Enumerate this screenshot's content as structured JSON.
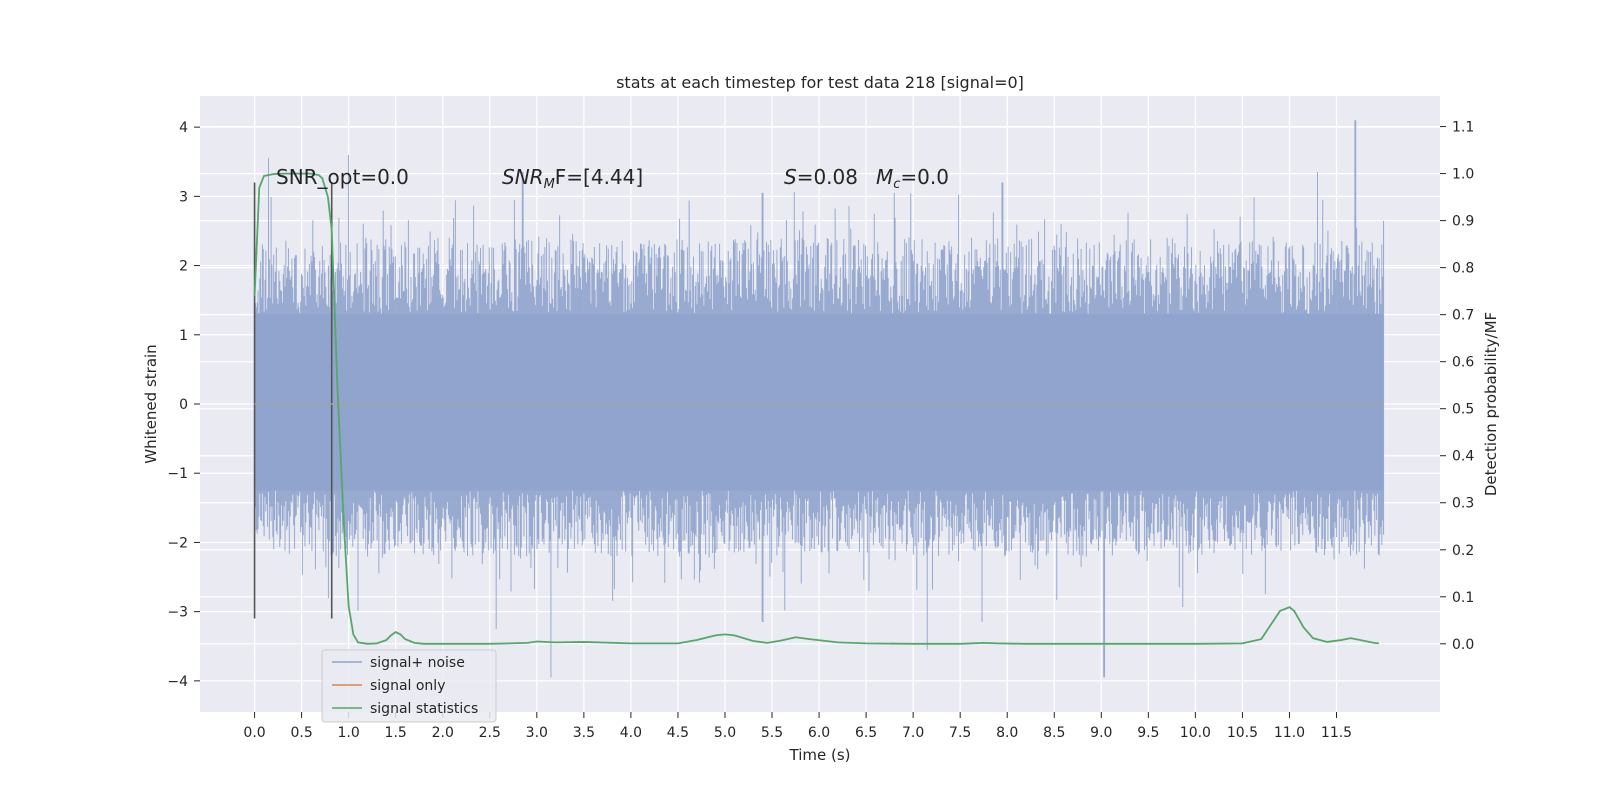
{
  "chart_data": {
    "type": "line",
    "title": "stats at each timestep for test data 218 [signal=0]",
    "xlabel": "Time (s)",
    "ylabel": "Whitened strain",
    "y2label": "Detection probability/MF",
    "xlim": [
      -0.58,
      12.6
    ],
    "ylim": [
      -4.45,
      4.45
    ],
    "y2lim": [
      -0.145,
      1.165
    ],
    "grid": true,
    "legend_position": "lower-left",
    "x_ticks": [
      "0.0",
      "0.5",
      "1.0",
      "1.5",
      "2.0",
      "2.5",
      "3.0",
      "3.5",
      "4.0",
      "4.5",
      "5.0",
      "5.5",
      "6.0",
      "6.5",
      "7.0",
      "7.5",
      "8.0",
      "8.5",
      "9.0",
      "9.5",
      "10.0",
      "10.5",
      "11.0",
      "11.5"
    ],
    "y_ticks": [
      "4",
      "3",
      "2",
      "1",
      "0",
      "−1",
      "−2",
      "−3",
      "−4"
    ],
    "y2_ticks": [
      "1.1",
      "1.0",
      "0.9",
      "0.8",
      "0.7",
      "0.6",
      "0.5",
      "0.4",
      "0.3",
      "0.2",
      "0.1",
      "0.0"
    ],
    "annotations": {
      "snr_opt": "SNR_opt=0.0",
      "snr_mf_base": "SNR",
      "snr_mf_sub": "M",
      "snr_mf_rest": "F=[4.44]",
      "s_label": "S",
      "s_value": "=0.08",
      "mc_label": "M",
      "mc_sub": "c",
      "mc_value": "=0.0"
    },
    "markers": {
      "x": [
        0.0,
        0.82
      ],
      "y_range": [
        -3.1,
        3.2
      ]
    },
    "series": [
      {
        "name": "signal+ noise",
        "color": "#8fa3cc",
        "x_range": [
          0.0,
          12.0
        ],
        "core_band": [
          -1.25,
          1.3
        ],
        "peaks": [
          [
            0.15,
            3.55
          ],
          [
            1.0,
            3.6
          ],
          [
            2.85,
            3.35
          ],
          [
            5.4,
            3.05
          ],
          [
            6.8,
            3.05
          ],
          [
            7.95,
            3.2
          ],
          [
            11.3,
            3.35
          ],
          [
            11.7,
            4.1
          ]
        ],
        "troughs": [
          [
            2.57,
            -3.25
          ],
          [
            3.15,
            -3.95
          ],
          [
            5.4,
            -3.15
          ],
          [
            7.15,
            -3.55
          ],
          [
            7.73,
            -3.15
          ],
          [
            9.03,
            -3.95
          ]
        ]
      },
      {
        "name": "signal only",
        "color": "#dd8452",
        "x_range": [
          0.0,
          12.0
        ],
        "values": [
          0.0,
          0.0
        ]
      },
      {
        "name": "signal statistics",
        "color": "#55a868",
        "x": [
          0.0,
          0.05,
          0.1,
          0.15,
          0.2,
          0.3,
          0.4,
          0.5,
          0.6,
          0.68,
          0.72,
          0.78,
          0.82,
          0.88,
          0.95,
          1.0,
          1.05,
          1.1,
          1.2,
          1.3,
          1.4,
          1.45,
          1.5,
          1.55,
          1.6,
          1.7,
          1.8,
          2.0,
          2.5,
          2.9,
          3.0,
          3.2,
          3.5,
          4.0,
          4.5,
          4.7,
          4.9,
          5.0,
          5.1,
          5.3,
          5.45,
          5.6,
          5.75,
          5.9,
          6.2,
          6.5,
          7.0,
          7.5,
          7.75,
          7.9,
          8.2,
          9.0,
          10.0,
          10.5,
          10.7,
          10.8,
          10.9,
          11.0,
          11.05,
          11.15,
          11.25,
          11.4,
          11.55,
          11.65,
          11.75,
          11.9,
          11.95
        ],
        "values": [
          0.74,
          0.97,
          0.995,
          0.997,
          0.999,
          1.0,
          1.0,
          1.0,
          1.0,
          0.997,
          0.99,
          0.95,
          0.88,
          0.55,
          0.25,
          0.08,
          0.02,
          0.003,
          0.0,
          0.001,
          0.008,
          0.018,
          0.025,
          0.02,
          0.01,
          0.002,
          0.0,
          0.0,
          0.0,
          0.002,
          0.005,
          0.003,
          0.004,
          0.001,
          0.001,
          0.008,
          0.018,
          0.02,
          0.018,
          0.006,
          0.002,
          0.007,
          0.014,
          0.01,
          0.003,
          0.001,
          0.0,
          0.0,
          0.002,
          0.001,
          0.0,
          0.0,
          0.0,
          0.001,
          0.01,
          0.04,
          0.07,
          0.078,
          0.07,
          0.035,
          0.012,
          0.004,
          0.008,
          0.012,
          0.008,
          0.002,
          0.001
        ]
      }
    ]
  }
}
